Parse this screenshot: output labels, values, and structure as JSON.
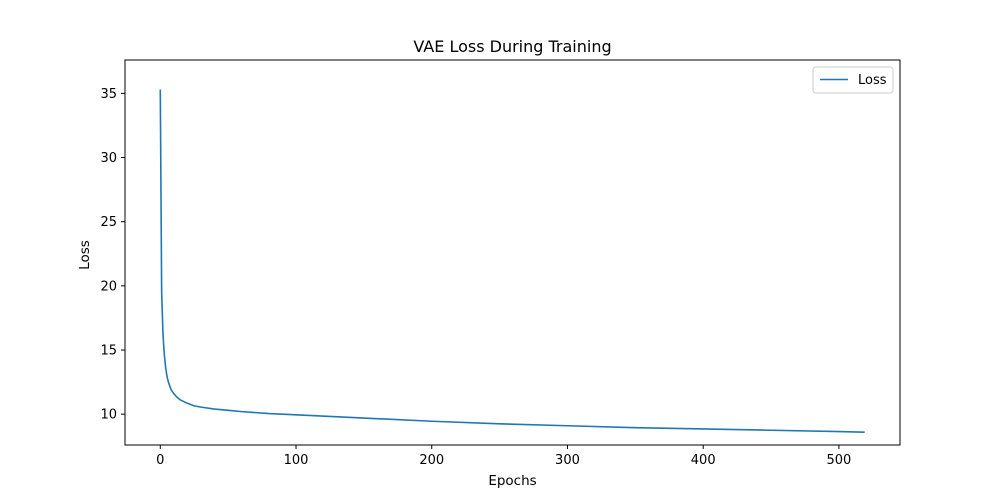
{
  "chart_data": {
    "type": "line",
    "title": "VAE Loss During Training",
    "xlabel": "Epochs",
    "ylabel": "Loss",
    "xlim": [
      -26,
      545
    ],
    "ylim": [
      7.6,
      37.6
    ],
    "xticks": [
      0,
      100,
      200,
      300,
      400,
      500
    ],
    "yticks": [
      10,
      15,
      20,
      25,
      30,
      35
    ],
    "grid": false,
    "legend_position": "top-right",
    "series": [
      {
        "name": "Loss",
        "color": "#1f77b4",
        "x": [
          0,
          1,
          2,
          3,
          4,
          5,
          6,
          7,
          8,
          10,
          12,
          15,
          20,
          25,
          30,
          40,
          50,
          60,
          80,
          100,
          150,
          200,
          250,
          300,
          350,
          400,
          450,
          500,
          519
        ],
        "y": [
          35.3,
          19.5,
          16.2,
          14.6,
          13.6,
          12.9,
          12.5,
          12.2,
          11.9,
          11.6,
          11.35,
          11.1,
          10.85,
          10.65,
          10.55,
          10.4,
          10.3,
          10.2,
          10.05,
          9.95,
          9.7,
          9.45,
          9.25,
          9.1,
          8.95,
          8.85,
          8.75,
          8.65,
          8.6
        ]
      }
    ]
  }
}
